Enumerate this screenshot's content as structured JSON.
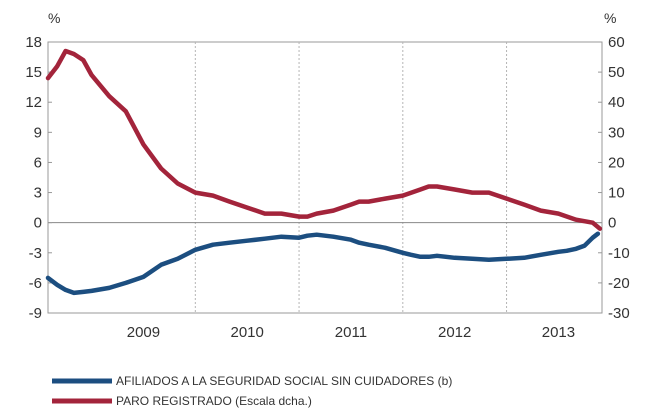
{
  "chart_data": {
    "type": "line",
    "left_unit": "%",
    "right_unit": "%",
    "left_axis": {
      "ylim": [
        -9,
        18
      ],
      "ticks": [
        -9,
        -6,
        -3,
        0,
        3,
        6,
        9,
        12,
        15,
        18
      ]
    },
    "right_axis": {
      "ylim": [
        -30,
        60
      ],
      "ticks": [
        -30,
        -20,
        -10,
        0,
        10,
        20,
        30,
        40,
        50,
        60
      ]
    },
    "xlim": [
      2008.58,
      2013.92
    ],
    "year_labels": [
      "2009",
      "2010",
      "2011",
      "2012",
      "2013"
    ],
    "grid": "vertical dashed lines at year boundaries",
    "zero_line": true,
    "legend_placement": "bottom-left",
    "series": [
      {
        "name": "AFILIADOS A LA SEGURIDAD SOCIAL SIN CUIDADORES (b)",
        "axis": "left",
        "color": "#1c4e80",
        "x": [
          2008.58,
          2008.67,
          2008.75,
          2008.83,
          2008.92,
          2009.0,
          2009.17,
          2009.33,
          2009.5,
          2009.67,
          2009.83,
          2010.0,
          2010.17,
          2010.33,
          2010.5,
          2010.67,
          2010.75,
          2010.83,
          2011.0,
          2011.08,
          2011.17,
          2011.33,
          2011.5,
          2011.58,
          2011.67,
          2011.83,
          2012.0,
          2012.08,
          2012.17,
          2012.25,
          2012.33,
          2012.5,
          2012.67,
          2012.83,
          2013.0,
          2013.17,
          2013.33,
          2013.5,
          2013.58,
          2013.67,
          2013.75,
          2013.83,
          2013.88
        ],
        "values": [
          -5.5,
          -6.2,
          -6.7,
          -7.0,
          -6.9,
          -6.8,
          -6.5,
          -6.0,
          -5.4,
          -4.2,
          -3.6,
          -2.7,
          -2.2,
          -2.0,
          -1.8,
          -1.6,
          -1.5,
          -1.4,
          -1.5,
          -1.3,
          -1.2,
          -1.4,
          -1.7,
          -2.0,
          -2.2,
          -2.5,
          -3.0,
          -3.2,
          -3.4,
          -3.4,
          -3.3,
          -3.5,
          -3.6,
          -3.7,
          -3.6,
          -3.5,
          -3.2,
          -2.9,
          -2.8,
          -2.6,
          -2.3,
          -1.5,
          -1.1
        ]
      },
      {
        "name": "PARO REGISTRADO (Escala dcha.)",
        "axis": "right",
        "color": "#a3243b",
        "x": [
          2008.58,
          2008.67,
          2008.75,
          2008.83,
          2008.92,
          2009.0,
          2009.17,
          2009.33,
          2009.5,
          2009.67,
          2009.83,
          2010.0,
          2010.17,
          2010.33,
          2010.5,
          2010.67,
          2010.75,
          2010.83,
          2011.0,
          2011.08,
          2011.17,
          2011.33,
          2011.5,
          2011.58,
          2011.67,
          2011.83,
          2012.0,
          2012.17,
          2012.25,
          2012.33,
          2012.5,
          2012.67,
          2012.83,
          2013.0,
          2013.17,
          2013.33,
          2013.5,
          2013.67,
          2013.83,
          2013.9
        ],
        "values": [
          48,
          52,
          57,
          56,
          54,
          49,
          42,
          37,
          26,
          18,
          13,
          10,
          9,
          7,
          5,
          3,
          3,
          3,
          2,
          2,
          3,
          4,
          6,
          7,
          7,
          8,
          9,
          11,
          12,
          12,
          11,
          10,
          10,
          8,
          6,
          4,
          3,
          1,
          0,
          -2
        ]
      }
    ]
  }
}
